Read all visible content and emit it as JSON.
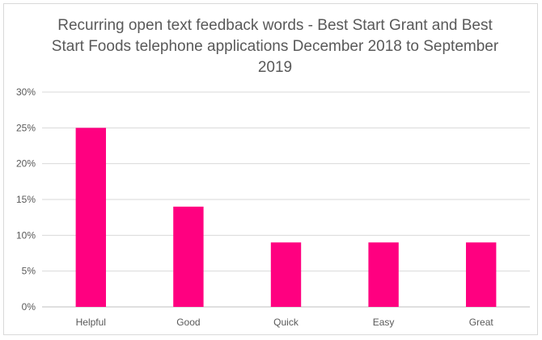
{
  "chart_data": {
    "type": "bar",
    "title": "Recurring open text feedback words - Best Start Grant and Best Start Foods telephone applications December 2018 to September 2019",
    "categories": [
      "Helpful",
      "Good",
      "Quick",
      "Easy",
      "Great"
    ],
    "values": [
      25,
      14,
      9,
      9,
      9
    ],
    "value_format": "percent",
    "ylim": [
      0,
      30
    ],
    "yticks": [
      0,
      5,
      10,
      15,
      20,
      25,
      30
    ],
    "ytick_labels": [
      "0%",
      "5%",
      "10%",
      "15%",
      "20%",
      "25%",
      "30%"
    ],
    "xlabel": "",
    "ylabel": "",
    "grid": "horizontal",
    "legend": "none",
    "colors": {
      "bar": "#ff0080",
      "grid": "#d9d9d9",
      "text": "#595959"
    }
  }
}
